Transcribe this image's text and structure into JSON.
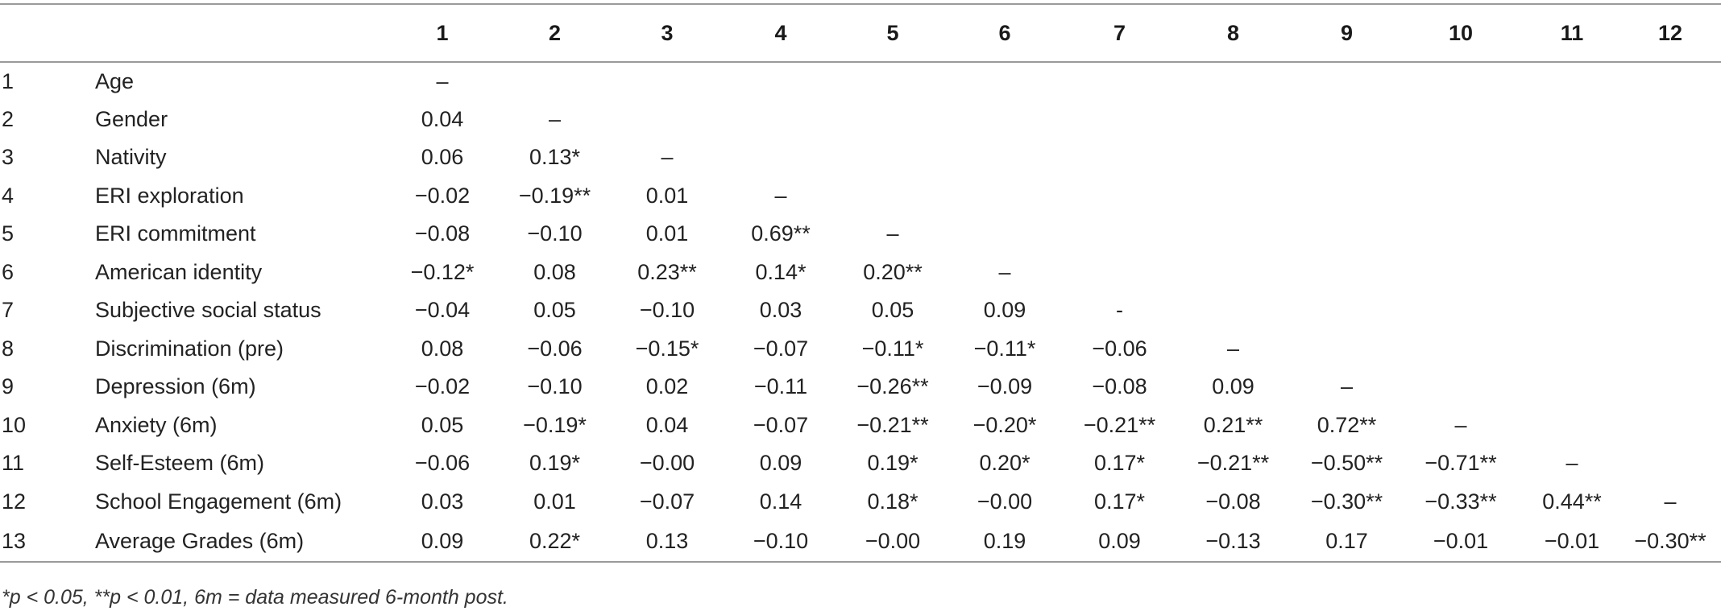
{
  "table": {
    "columns": [
      "1",
      "2",
      "3",
      "4",
      "5",
      "6",
      "7",
      "8",
      "9",
      "10",
      "11",
      "12"
    ],
    "rows": [
      {
        "num": "1",
        "label": "Age",
        "cells": [
          "–"
        ]
      },
      {
        "num": "2",
        "label": "Gender",
        "cells": [
          "0.04",
          "–"
        ]
      },
      {
        "num": "3",
        "label": "Nativity",
        "cells": [
          "0.06",
          "0.13*",
          "–"
        ]
      },
      {
        "num": "4",
        "label": "ERI exploration",
        "cells": [
          "−0.02",
          "−0.19**",
          "0.01",
          "–"
        ]
      },
      {
        "num": "5",
        "label": "ERI commitment",
        "cells": [
          "−0.08",
          "−0.10",
          "0.01",
          "0.69**",
          "–"
        ]
      },
      {
        "num": "6",
        "label": "American identity",
        "cells": [
          "−0.12*",
          "0.08",
          "0.23**",
          "0.14*",
          "0.20**",
          "–"
        ]
      },
      {
        "num": "7",
        "label": "Subjective social status",
        "cells": [
          "−0.04",
          "0.05",
          "−0.10",
          "0.03",
          "0.05",
          "0.09",
          "-"
        ]
      },
      {
        "num": "8",
        "label": "Discrimination (pre)",
        "cells": [
          "0.08",
          "−0.06",
          "−0.15*",
          "−0.07",
          "−0.11*",
          "−0.11*",
          "−0.06",
          "–"
        ]
      },
      {
        "num": "9",
        "label": "Depression (6m)",
        "cells": [
          "−0.02",
          "−0.10",
          "0.02",
          "−0.11",
          "−0.26**",
          "−0.09",
          "−0.08",
          "0.09",
          "–"
        ]
      },
      {
        "num": "10",
        "label": "Anxiety (6m)",
        "cells": [
          "0.05",
          "−0.19*",
          "0.04",
          "−0.07",
          "−0.21**",
          "−0.20*",
          "−0.21**",
          "0.21**",
          "0.72**",
          "–"
        ]
      },
      {
        "num": "11",
        "label": "Self-Esteem (6m)",
        "cells": [
          "−0.06",
          "0.19*",
          "−0.00",
          "0.09",
          "0.19*",
          "0.20*",
          "0.17*",
          "−0.21**",
          "−0.50**",
          "−0.71**",
          "–"
        ]
      },
      {
        "num": "12",
        "label": "School Engagement (6m)",
        "cells": [
          "0.03",
          "0.01",
          "−0.07",
          "0.14",
          "0.18*",
          "−0.00",
          "0.17*",
          "−0.08",
          "−0.30**",
          "−0.33**",
          "0.44**",
          "–"
        ]
      },
      {
        "num": "13",
        "label": "Average Grades (6m)",
        "cells": [
          "0.09",
          "0.22*",
          "0.13",
          "−0.10",
          "−0.00",
          "0.19",
          "0.09",
          "−0.13",
          "0.17",
          "−0.01",
          "−0.01",
          "−0.30**"
        ]
      }
    ]
  },
  "footnote": "*p < 0.05, **p < 0.01, 6m = data measured 6-month post."
}
